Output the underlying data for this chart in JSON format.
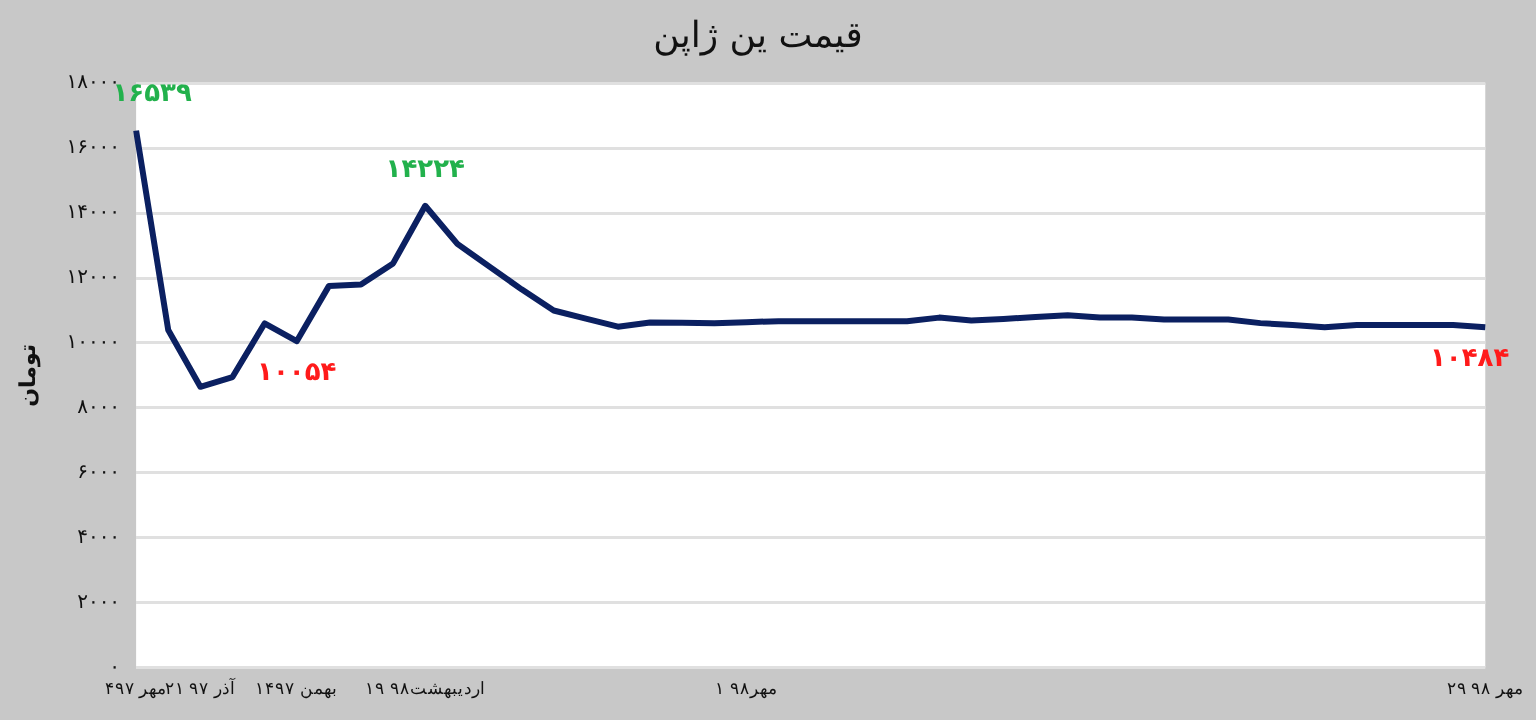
{
  "chart_data": {
    "type": "line",
    "title": "قیمت ین ژاپن",
    "ylabel": "تومان",
    "categories": [
      "۴مهر ۹۷",
      null,
      "۲۱ آذر ۹۷",
      null,
      null,
      "۱۴بهمن ۹۷",
      null,
      null,
      null,
      "۱۹ اردیبهشت۹۸",
      null,
      null,
      null,
      null,
      null,
      null,
      null,
      null,
      null,
      "۱ مهر۹۸",
      null,
      null,
      null,
      null,
      null,
      null,
      null,
      null,
      null,
      null,
      null,
      null,
      null,
      null,
      null,
      null,
      null,
      null,
      null,
      null,
      null,
      null,
      "۲۹ مهر ۹۸"
    ],
    "series": [
      {
        "color": "#0b2061",
        "values": [
          16539,
          10400,
          8650,
          8950,
          10600,
          10054,
          11750,
          11800,
          12450,
          14224,
          13050,
          12350,
          11650,
          11000,
          10750,
          10500,
          10630,
          10620,
          10610,
          10640,
          10670,
          10670,
          10670,
          10670,
          10670,
          10780,
          10690,
          10740,
          10800,
          10850,
          10780,
          10780,
          10720,
          10720,
          10720,
          10610,
          10550,
          10480,
          10550,
          10550,
          10550,
          10550,
          10484
        ],
        "value_labels": [
          "۱۶۵۳۹",
          null,
          null,
          null,
          null,
          "۱۰۰۵۴",
          null,
          null,
          null,
          "۱۴۲۲۴",
          null,
          null,
          null,
          null,
          null,
          null,
          null,
          null,
          null,
          null,
          null,
          null,
          null,
          null,
          null,
          null,
          null,
          null,
          null,
          null,
          null,
          null,
          null,
          null,
          null,
          null,
          null,
          null,
          null,
          null,
          null,
          null,
          "۱۰۴۸۴"
        ]
      }
    ],
    "ylim": [
      0,
      18000
    ],
    "yticks": [
      {
        "value": 0,
        "label": "۰"
      },
      {
        "value": 2000,
        "label": "۲۰۰۰"
      },
      {
        "value": 4000,
        "label": "۴۰۰۰"
      },
      {
        "value": 6000,
        "label": "۶۰۰۰"
      },
      {
        "value": 8000,
        "label": "۸۰۰۰"
      },
      {
        "value": 10000,
        "label": "۱۰۰۰۰"
      },
      {
        "value": 12000,
        "label": "۱۲۰۰۰"
      },
      {
        "value": 14000,
        "label": "۱۴۰۰۰"
      },
      {
        "value": 16000,
        "label": "۱۶۰۰۰"
      },
      {
        "value": 18000,
        "label": "۱۸۰۰۰"
      }
    ],
    "grid": "y",
    "legend": false,
    "marker": "none",
    "line_style": "solid"
  }
}
